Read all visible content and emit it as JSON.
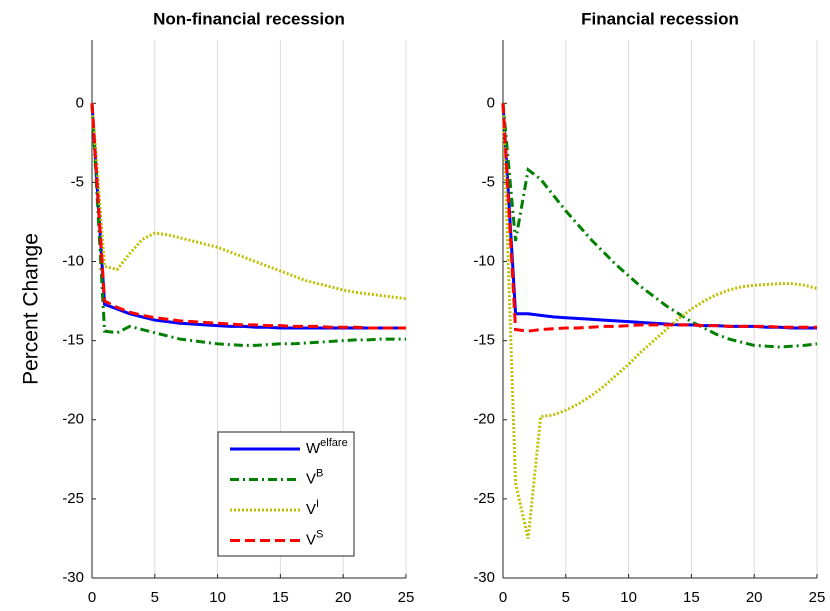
{
  "chart_data": [
    {
      "type": "line",
      "title": "Non-financial recession",
      "ylabel": "Percent Change",
      "x": [
        0,
        1,
        2,
        3,
        4,
        5,
        6,
        7,
        8,
        9,
        10,
        11,
        12,
        13,
        14,
        15,
        16,
        17,
        18,
        19,
        20,
        21,
        22,
        23,
        24,
        25
      ],
      "xlim": [
        0,
        25
      ],
      "xticks": [
        0,
        5,
        10,
        15,
        20,
        25
      ],
      "ylim": [
        -30,
        4
      ],
      "yticks": [
        -30,
        -25,
        -20,
        -15,
        -10,
        -5,
        0
      ],
      "grid": "x",
      "legend": "lower right",
      "series": [
        {
          "name": "Welfare",
          "color": "#0000ff",
          "style": "solid",
          "values": [
            0,
            -12.7,
            -13.0,
            -13.3,
            -13.5,
            -13.7,
            -13.8,
            -13.9,
            -13.95,
            -14.0,
            -14.05,
            -14.1,
            -14.1,
            -14.15,
            -14.15,
            -14.2,
            -14.2,
            -14.2,
            -14.2,
            -14.2,
            -14.2,
            -14.2,
            -14.2,
            -14.2,
            -14.2,
            -14.2
          ]
        },
        {
          "name": "VB",
          "color": "#008000",
          "style": "dashdot",
          "values": [
            0,
            -14.4,
            -14.5,
            -14.1,
            -14.3,
            -14.5,
            -14.7,
            -14.9,
            -15.0,
            -15.1,
            -15.2,
            -15.25,
            -15.3,
            -15.3,
            -15.25,
            -15.2,
            -15.2,
            -15.15,
            -15.1,
            -15.05,
            -15.0,
            -14.95,
            -14.95,
            -14.9,
            -14.9,
            -14.9
          ]
        },
        {
          "name": "VI",
          "color": "#bfbf00",
          "style": "dotted",
          "values": [
            0,
            -10.3,
            -10.5,
            -9.5,
            -8.6,
            -8.2,
            -8.3,
            -8.5,
            -8.7,
            -8.9,
            -9.1,
            -9.4,
            -9.7,
            -10.0,
            -10.3,
            -10.6,
            -10.9,
            -11.2,
            -11.4,
            -11.6,
            -11.8,
            -11.95,
            -12.05,
            -12.15,
            -12.25,
            -12.35
          ]
        },
        {
          "name": "VS",
          "color": "#ff0000",
          "style": "dashed",
          "values": [
            0,
            -12.5,
            -12.9,
            -13.2,
            -13.4,
            -13.55,
            -13.65,
            -13.75,
            -13.8,
            -13.85,
            -13.9,
            -13.95,
            -14.0,
            -14.0,
            -14.05,
            -14.05,
            -14.1,
            -14.1,
            -14.1,
            -14.15,
            -14.15,
            -14.15,
            -14.2,
            -14.2,
            -14.2,
            -14.2
          ]
        }
      ]
    },
    {
      "type": "line",
      "title": "Financial recession",
      "x": [
        0,
        1,
        2,
        3,
        4,
        5,
        6,
        7,
        8,
        9,
        10,
        11,
        12,
        13,
        14,
        15,
        16,
        17,
        18,
        19,
        20,
        21,
        22,
        23,
        24,
        25
      ],
      "xlim": [
        0,
        25
      ],
      "xticks": [
        0,
        5,
        10,
        15,
        20,
        25
      ],
      "ylim": [
        -30,
        4
      ],
      "yticks": [
        -30,
        -25,
        -20,
        -15,
        -10,
        -5,
        0
      ],
      "grid": "x",
      "series": [
        {
          "name": "Welfare",
          "color": "#0000ff",
          "style": "solid",
          "values": [
            0,
            -13.3,
            -13.3,
            -13.4,
            -13.5,
            -13.55,
            -13.6,
            -13.65,
            -13.7,
            -13.75,
            -13.8,
            -13.85,
            -13.9,
            -13.95,
            -14.0,
            -14.0,
            -14.05,
            -14.05,
            -14.1,
            -14.1,
            -14.1,
            -14.15,
            -14.15,
            -14.2,
            -14.2,
            -14.2
          ]
        },
        {
          "name": "VB",
          "color": "#008000",
          "style": "dashdot",
          "values": [
            0,
            -8.7,
            -4.2,
            -4.8,
            -5.8,
            -6.8,
            -7.7,
            -8.6,
            -9.4,
            -10.2,
            -10.9,
            -11.6,
            -12.2,
            -12.8,
            -13.3,
            -13.8,
            -14.2,
            -14.6,
            -14.9,
            -15.1,
            -15.3,
            -15.35,
            -15.4,
            -15.35,
            -15.3,
            -15.2
          ]
        },
        {
          "name": "VI",
          "color": "#bfbf00",
          "style": "dotted",
          "values": [
            0,
            -24,
            -27.5,
            -19.8,
            -19.7,
            -19.4,
            -19.0,
            -18.5,
            -17.9,
            -17.2,
            -16.5,
            -15.7,
            -15.0,
            -14.3,
            -13.6,
            -13.0,
            -12.5,
            -12.1,
            -11.8,
            -11.6,
            -11.5,
            -11.45,
            -11.4,
            -11.4,
            -11.5,
            -11.7
          ]
        },
        {
          "name": "VS",
          "color": "#ff0000",
          "style": "dashed",
          "values": [
            0,
            -14.3,
            -14.4,
            -14.3,
            -14.25,
            -14.2,
            -14.2,
            -14.15,
            -14.1,
            -14.1,
            -14.05,
            -14.0,
            -14.0,
            -14.0,
            -14.0,
            -14.0,
            -14.05,
            -14.05,
            -14.1,
            -14.1,
            -14.1,
            -14.1,
            -14.15,
            -14.15,
            -14.15,
            -14.15
          ]
        }
      ]
    }
  ]
}
